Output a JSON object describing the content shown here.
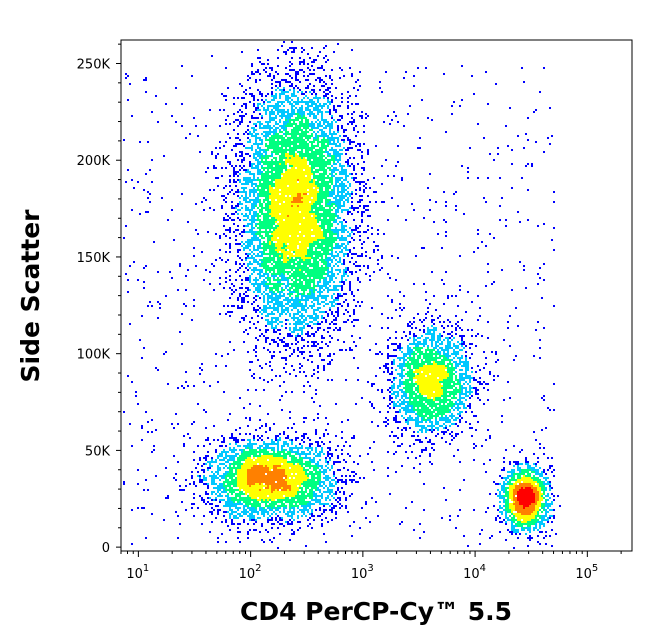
{
  "chart_data": {
    "type": "scatter",
    "subtype": "flow-cytometry-density-dot-plot",
    "xlabel": "CD4 PerCP-Cy™ 5.5",
    "ylabel": "Side Scatter",
    "x_scale": "log",
    "xlim": [
      7,
      250000
    ],
    "ylim": [
      -2000,
      262144
    ],
    "x_ticks": [
      {
        "value": 10,
        "base": "10",
        "exp": "1"
      },
      {
        "value": 100,
        "base": "10",
        "exp": "2"
      },
      {
        "value": 1000,
        "base": "10",
        "exp": "3"
      },
      {
        "value": 10000,
        "base": "10",
        "exp": "4"
      },
      {
        "value": 100000,
        "base": "10",
        "exp": "5"
      }
    ],
    "y_ticks": [
      {
        "value": 0,
        "label": "0"
      },
      {
        "value": 50000,
        "label": "50K"
      },
      {
        "value": 100000,
        "label": "100K"
      },
      {
        "value": 150000,
        "label": "150K"
      },
      {
        "value": 200000,
        "label": "200K"
      },
      {
        "value": 250000,
        "label": "250K"
      }
    ],
    "color_scale": [
      "#0000ff",
      "#00c8ff",
      "#00ff80",
      "#ffff00",
      "#ff8000",
      "#ff0000"
    ],
    "clusters": [
      {
        "x_center": 250,
        "x_log_spread": 0.25,
        "y_center": 175000,
        "y_spread": 32000,
        "relative_count": 1.0,
        "peak_color": "#ff4000"
      },
      {
        "x_center": 150,
        "x_log_spread": 0.28,
        "y_center": 35000,
        "y_spread": 10000,
        "relative_count": 0.45,
        "peak_color": "#ffff00"
      },
      {
        "x_center": 4000,
        "x_log_spread": 0.18,
        "y_center": 85000,
        "y_spread": 14000,
        "relative_count": 0.28,
        "peak_color": "#00ff80"
      },
      {
        "x_center": 28000,
        "x_log_spread": 0.1,
        "y_center": 25000,
        "y_spread": 8000,
        "relative_count": 0.2,
        "peak_color": "#ff0000"
      }
    ],
    "grid": false,
    "legend": "none"
  }
}
